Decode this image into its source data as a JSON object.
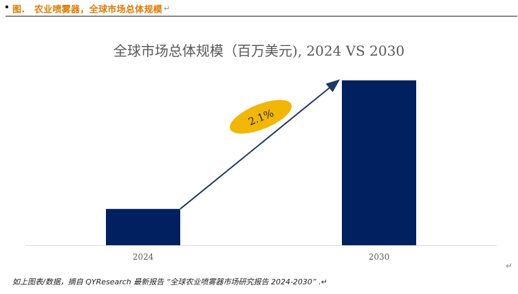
{
  "figure_caption": "图.　农业喷雾器，全球市场总体规模",
  "pilcrow": "↵",
  "chart_data": {
    "type": "bar",
    "title": "全球市场总体规模（百万美元), 2024 VS 2030",
    "categories": [
      "2024",
      "2030"
    ],
    "values": [
      22,
      100
    ],
    "value_note": "relative heights estimated; no axis values shown",
    "ylim": [
      0,
      100
    ],
    "xlabel": "",
    "ylabel": "",
    "grid": false,
    "annotation": {
      "label": "2.1%",
      "meaning": "growth arrow from 2024 to 2030"
    },
    "colors": {
      "bar": "#002060",
      "arrow": "#1f3864",
      "badge": "#f2b705",
      "axis": "#d9d9d9",
      "tick_text": "#595959"
    }
  },
  "source_note": "如上图表/数据，摘自 QYResearch 最新报告 “全球农业喷雾器市场研究报告 2024-2030” .↵"
}
